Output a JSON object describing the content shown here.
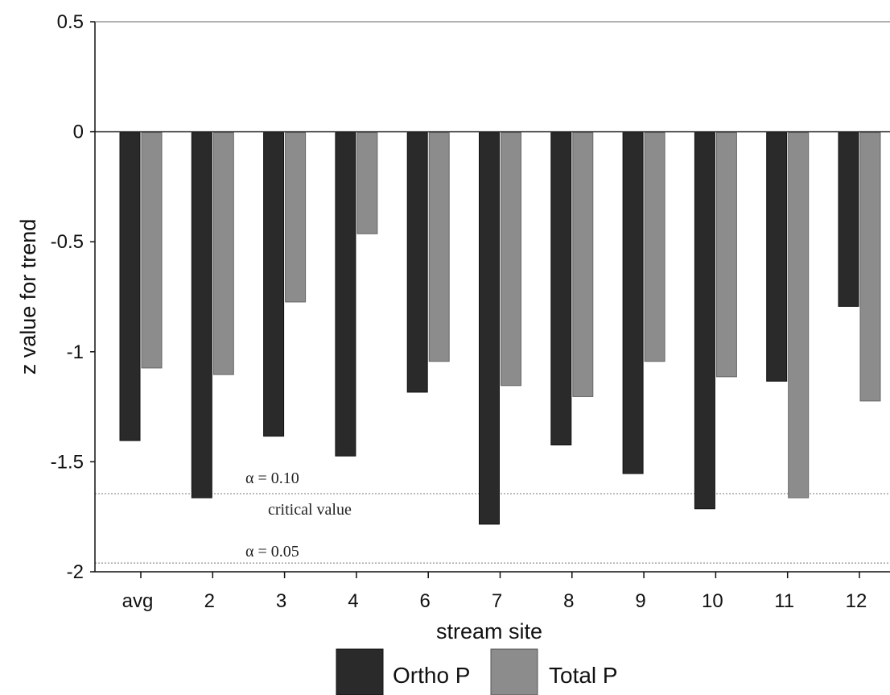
{
  "chart_data": {
    "type": "bar",
    "xlabel": "stream site",
    "ylabel": "z value for trend",
    "categories": [
      "avg",
      "2",
      "3",
      "4",
      "6",
      "7",
      "8",
      "9",
      "10",
      "11",
      "12"
    ],
    "series": [
      {
        "name": "Ortho P",
        "color": "#2a2a2a",
        "values": [
          -1.4,
          -1.66,
          -1.38,
          -1.47,
          -1.18,
          -1.78,
          -1.42,
          -1.55,
          -1.71,
          -1.13,
          -0.79
        ]
      },
      {
        "name": "Total P",
        "color": "#8c8c8c",
        "values": [
          -1.07,
          -1.1,
          -0.77,
          -0.46,
          -1.04,
          -1.15,
          -1.2,
          -1.04,
          -1.11,
          -1.66,
          -1.22
        ]
      }
    ],
    "ylim": [
      -2,
      0.5
    ],
    "yticks": [
      "0.5",
      "0",
      "-0.5",
      "-1",
      "-1.5",
      "-2"
    ],
    "reference_lines": [
      {
        "label": "α = 0.10",
        "value": -1.645
      },
      {
        "label": "α = 0.05",
        "value": -1.96
      }
    ],
    "annotation": "critical value",
    "legend_position": "bottom"
  }
}
